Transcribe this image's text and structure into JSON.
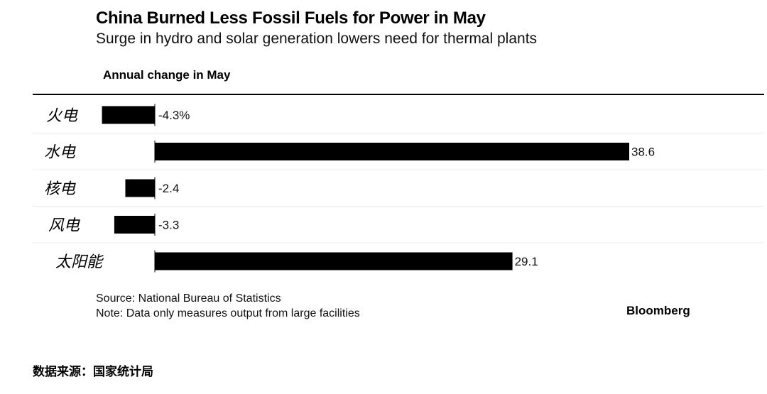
{
  "header": {
    "title": "China Burned Less Fossil Fuels for Power in May",
    "subtitle": "Surge in hydro and solar generation lowers need for thermal plants"
  },
  "chart_data": {
    "type": "bar",
    "orientation": "horizontal",
    "axis_title": "Annual change in May",
    "categories": [
      "火电",
      "水电",
      "核电",
      "风电",
      "太阳能"
    ],
    "values": [
      -4.3,
      38.6,
      -2.4,
      -3.3,
      29.1
    ],
    "value_labels": [
      "-4.3%",
      "38.6",
      "-2.4",
      "-3.3",
      "29.1"
    ],
    "xlim": [
      -5,
      40
    ],
    "bar_color": "#000000",
    "grid": false
  },
  "notes": {
    "source": "Source: National Bureau of Statistics",
    "note": "Note: Data only measures output from large facilities"
  },
  "brand": "Bloomberg",
  "footer": "数据来源：国家统计局"
}
